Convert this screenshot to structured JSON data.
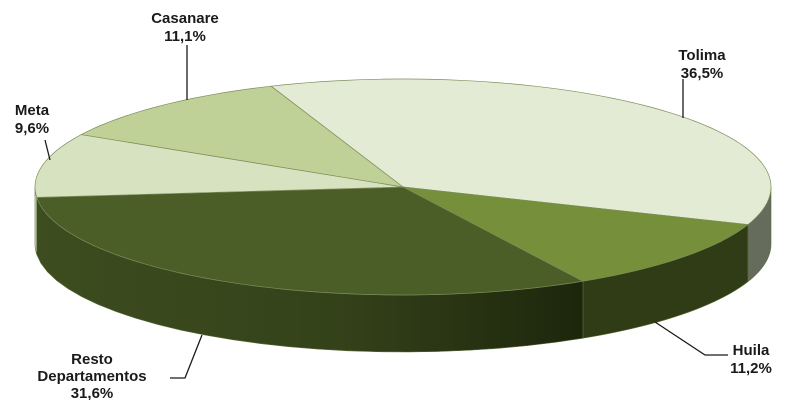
{
  "chart_data": {
    "type": "pie",
    "style": "3d",
    "slices": [
      {
        "label": "Tolima",
        "value": 36.5,
        "value_text": "36,5%",
        "color": "#e4ebd4"
      },
      {
        "label": "Huila",
        "value": 11.2,
        "value_text": "11,2%",
        "color": "#768f3a"
      },
      {
        "label": "Resto Departamentos",
        "label_lines": [
          "Resto",
          "Departamentos"
        ],
        "value": 31.6,
        "value_text": "31,6%",
        "color": "#4b5e27"
      },
      {
        "label": "Meta",
        "value": 9.6,
        "value_text": "9,6%",
        "color": "#d7e2c0"
      },
      {
        "label": "Casanare",
        "value": 11.1,
        "value_text": "11,1%",
        "color": "#bfd196"
      }
    ],
    "side_colors": {
      "Tolima": "#666c5c",
      "Huila": "#2f3c15",
      "Resto Departamentos": "#34421a"
    }
  }
}
